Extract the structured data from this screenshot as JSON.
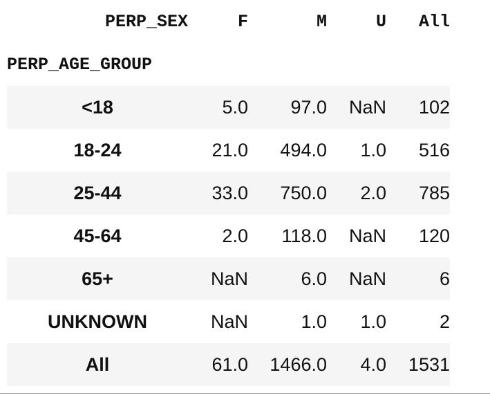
{
  "columns_label": "PERP_SEX",
  "index_label": "PERP_AGE_GROUP",
  "columns": [
    "F",
    "M",
    "U",
    "All"
  ],
  "rows": [
    {
      "label": "<18",
      "values": [
        "5.0",
        "97.0",
        "NaN",
        "102"
      ]
    },
    {
      "label": "18-24",
      "values": [
        "21.0",
        "494.0",
        "1.0",
        "516"
      ]
    },
    {
      "label": "25-44",
      "values": [
        "33.0",
        "750.0",
        "2.0",
        "785"
      ]
    },
    {
      "label": "45-64",
      "values": [
        "2.0",
        "118.0",
        "NaN",
        "120"
      ]
    },
    {
      "label": "65+",
      "values": [
        "NaN",
        "6.0",
        "NaN",
        "6"
      ]
    },
    {
      "label": "UNKNOWN",
      "values": [
        "NaN",
        "1.0",
        "1.0",
        "2"
      ]
    },
    {
      "label": "All",
      "values": [
        "61.0",
        "1466.0",
        "4.0",
        "1531"
      ]
    }
  ],
  "colors": {
    "stripe": "#f5f5f5",
    "text": "#111111",
    "rule": "#8a8a8a"
  }
}
